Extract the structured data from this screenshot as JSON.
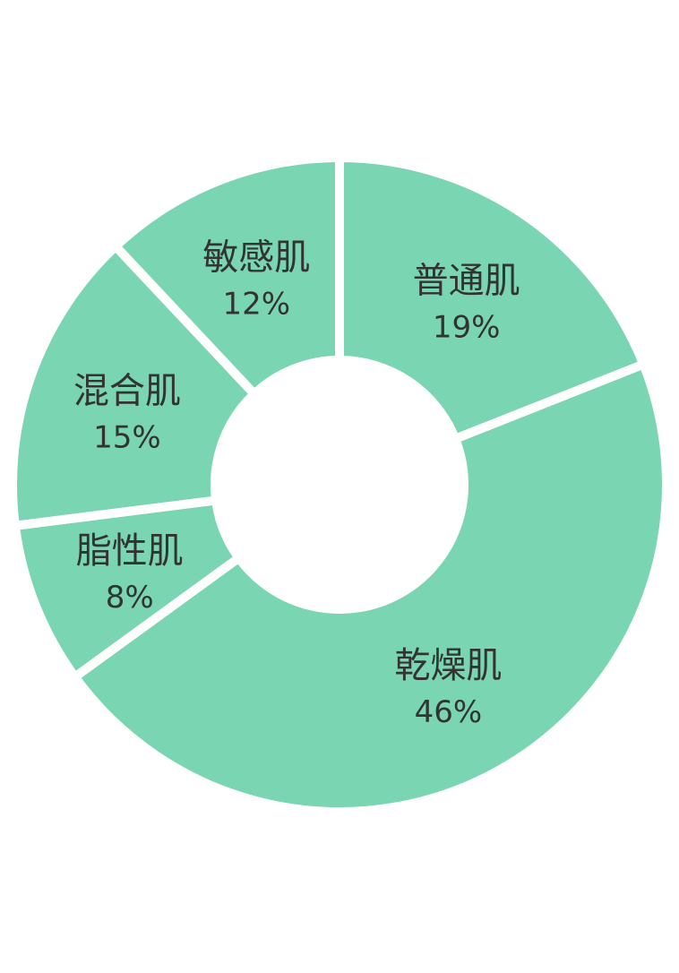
{
  "chart_data": {
    "type": "pie",
    "donut": true,
    "start": "top",
    "direction": "clockwise",
    "color": "#7AD6B2",
    "separator_color": "#FFFFFF",
    "slices": [
      {
        "label": "普通肌",
        "value": 19,
        "value_label": "19%"
      },
      {
        "label": "乾燥肌",
        "value": 46,
        "value_label": "46%"
      },
      {
        "label": "脂性肌",
        "value": 8,
        "value_label": "8%"
      },
      {
        "label": "混合肌",
        "value": 15,
        "value_label": "15%"
      },
      {
        "label": "敏感肌",
        "value": 12,
        "value_label": "12%"
      }
    ]
  }
}
